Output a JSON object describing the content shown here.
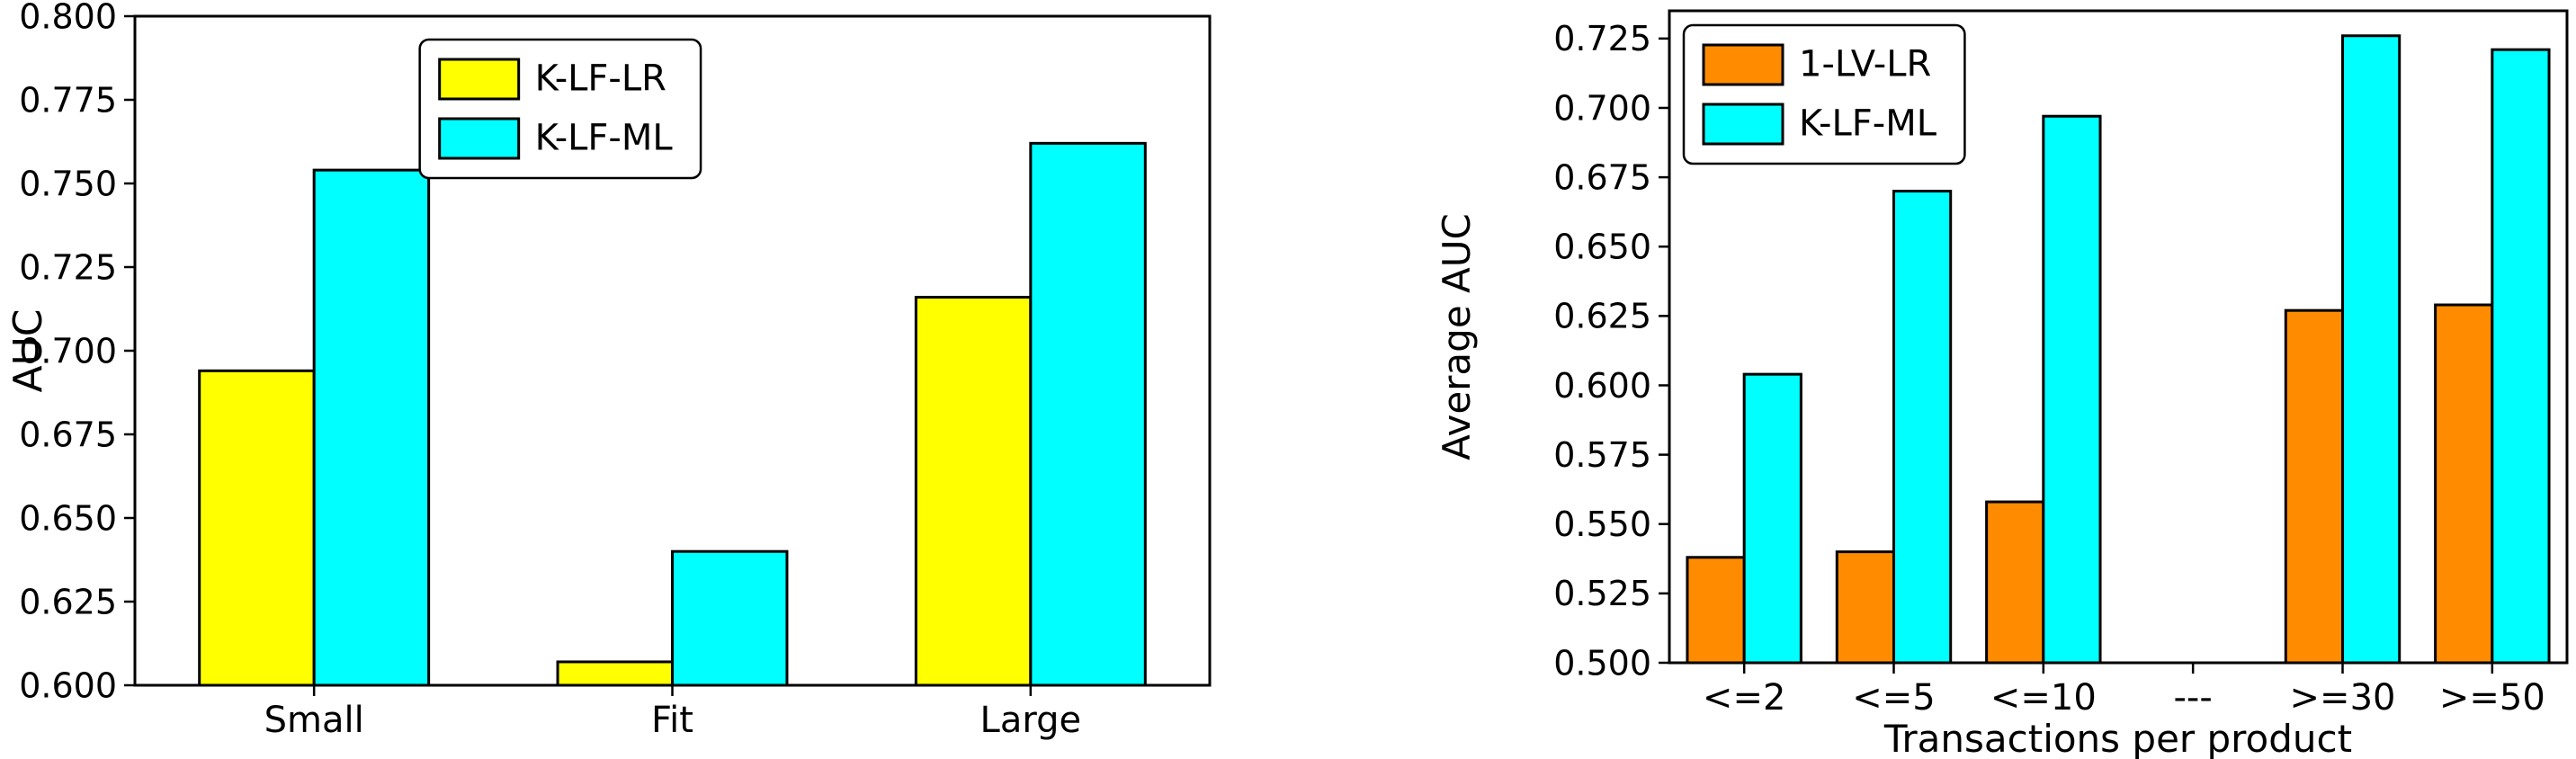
{
  "figure": {
    "background": "#ffffff",
    "edge_color": "#000000"
  },
  "chart_data": [
    {
      "type": "bar",
      "title": "",
      "xlabel": "",
      "ylabel": "AUC",
      "ylim": [
        0.6,
        0.8
      ],
      "yticks": [
        0.6,
        0.625,
        0.65,
        0.675,
        0.7,
        0.725,
        0.75,
        0.775,
        0.8
      ],
      "ytick_labels": [
        "0.600",
        "0.625",
        "0.650",
        "0.675",
        "0.700",
        "0.725",
        "0.750",
        "0.775",
        "0.800"
      ],
      "categories": [
        "Small",
        "Fit",
        "Large"
      ],
      "series": [
        {
          "name": "K-LF-LR",
          "color": "#ffff00",
          "values": [
            0.694,
            0.607,
            0.716
          ]
        },
        {
          "name": "K-LF-ML",
          "color": "#00ffff",
          "values": [
            0.754,
            0.64,
            0.762
          ]
        }
      ],
      "grid": false,
      "legend_position": "top-center",
      "legend_entries": [
        "K-LF-LR",
        "K-LF-ML"
      ]
    },
    {
      "type": "bar",
      "title": "",
      "xlabel": "Transactions per product",
      "ylabel": "Average AUC",
      "ylim": [
        0.5,
        0.735
      ],
      "yticks": [
        0.5,
        0.525,
        0.55,
        0.575,
        0.6,
        0.625,
        0.65,
        0.675,
        0.7,
        0.725
      ],
      "ytick_labels": [
        "0.500",
        "0.525",
        "0.550",
        "0.575",
        "0.600",
        "0.625",
        "0.650",
        "0.675",
        "0.700",
        "0.725"
      ],
      "categories": [
        "<=2",
        "<=5",
        "<=10",
        "---",
        ">=30",
        ">=50"
      ],
      "series": [
        {
          "name": "1-LV-LR",
          "color": "#ff8c00",
          "values": [
            0.538,
            0.54,
            0.558,
            null,
            0.627,
            0.629
          ]
        },
        {
          "name": "K-LF-ML",
          "color": "#00ffff",
          "values": [
            0.604,
            0.67,
            0.697,
            null,
            0.726,
            0.721
          ]
        }
      ],
      "grid": false,
      "legend_position": "top-left",
      "legend_entries": [
        "1-LV-LR",
        "K-LF-ML"
      ]
    }
  ]
}
